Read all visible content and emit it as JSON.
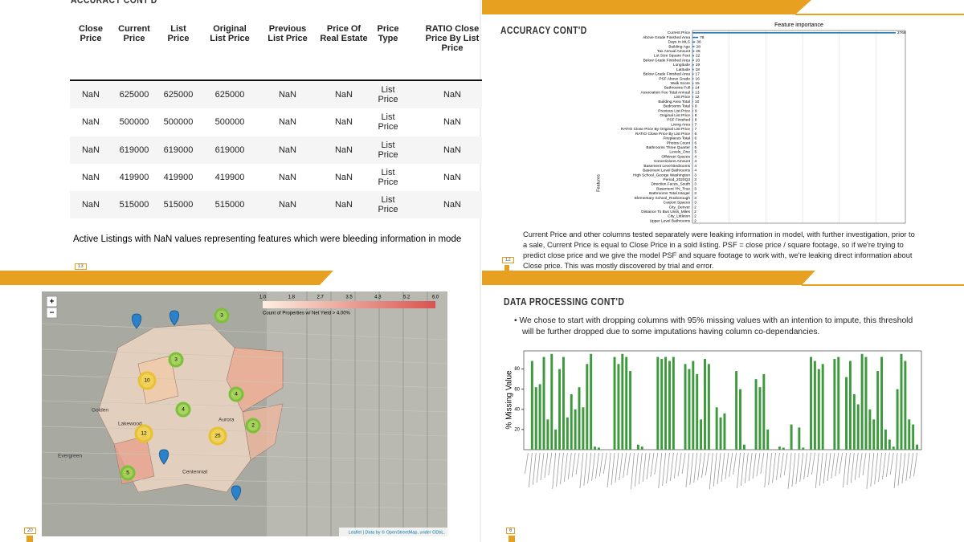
{
  "slides": [
    {
      "title": "ACCURACY CONT'D",
      "page": "13",
      "table": {
        "header": [
          "Close Price",
          "Current Price",
          "List Price",
          "Original List Price",
          "Previous List Price",
          "Price Of Real Estate",
          "Price Type",
          "RATIO Close Price By List Price"
        ],
        "rows": [
          [
            "NaN",
            625000,
            625000,
            625000,
            "NaN",
            "NaN",
            "List Price",
            "NaN"
          ],
          [
            "NaN",
            500000,
            500000,
            500000,
            "NaN",
            "NaN",
            "List Price",
            "NaN"
          ],
          [
            "NaN",
            619000,
            619000,
            619000,
            "NaN",
            "NaN",
            "List Price",
            "NaN"
          ],
          [
            "NaN",
            419900,
            419900,
            419900,
            "NaN",
            "NaN",
            "List Price",
            "NaN"
          ],
          [
            "NaN",
            515000,
            515000,
            515000,
            "NaN",
            "NaN",
            "List Price",
            "NaN"
          ]
        ]
      },
      "caption": "Active Listings with NaN values representing features which were bleeding information in mode"
    },
    {
      "title": "ACCURACY CONT'D",
      "page": "12",
      "text": "Current Price and other columns tested separately were leaking information in model, with further investigation, prior to a sale, Current Price is equal to Close Price in a sold listing. PSF = close price / square footage, so if we're trying to predict close price and we give the model PSF and square footage to work with, we're leaking direct information about Close price. This was mostly discovered by trial and error."
    },
    {
      "page": "20",
      "map": {
        "zoom": [
          "+",
          "−"
        ],
        "legend_ticks": [
          "1.0",
          "1.8",
          "2.7",
          "3.5",
          "4.3",
          "5.2",
          "6.0"
        ],
        "legend_title": "Count of Properties w/ Net Yield > 4.00%",
        "clusters": [
          "3",
          "3",
          "10",
          "4",
          "4",
          "2",
          "12",
          "25",
          "5"
        ],
        "places": [
          "Golden",
          "Lakewood",
          "Evergreen",
          "Centennial",
          "Aurora"
        ],
        "attribution": "Leaflet | Data by © OpenStreetMap, under ODbL."
      }
    },
    {
      "title": "DATA PROCESSING CONT'D",
      "page": "6",
      "bullet": "We chose to start with dropping columns with 95% missing values with an intention to impute, this threshold will be further dropped due to some imputations having column co-dependancies."
    }
  ],
  "chart_data": [
    {
      "type": "barh",
      "title": "Feature importance",
      "ylabel": "Features",
      "color": "#1f77b4",
      "grid": true,
      "categories": [
        "Current Price",
        "Above Grade Finished Area",
        "Days In MLS",
        "Building Age",
        "Tax Annual Amount",
        "Lot Size Square Feet",
        "Below Grade Finished Area",
        "Longitude",
        "Latitude",
        "Below Grade Finished Area",
        "PSF Above Grade",
        "Walk Score",
        "Bathrooms Full",
        "Association Fee Total Annual",
        "List Price",
        "Building Area Total",
        "Bedrooms Total",
        "Previous List Price",
        "Original List Price",
        "PSF Finished",
        "Living Area",
        "RATIO Close Price By Original List Price",
        "RATIO Close Price By List Price",
        "Fireplaces Total",
        "Photos Count",
        "Bathrooms Three Quarter",
        "Levels_One",
        "Offstreet Spaces",
        "Concessions Amount",
        "Basement Level Bedrooms",
        "Basement Level Bathrooms",
        "High School_George Washington",
        "Period_2020Q3",
        "Direction Faces_South",
        "Basement YN_True",
        "Bathrooms Total Integer",
        "Elementary School_Roxborough",
        "Carport Spaces",
        "City_Denver",
        "Distance To Bus Units_Miles",
        "City_Littleton",
        "Upper Level Bathrooms"
      ],
      "values": [
        2768,
        78,
        36,
        28,
        25,
        22,
        20,
        19,
        18,
        17,
        16,
        15,
        14,
        13,
        12,
        10,
        9,
        9,
        8,
        8,
        7,
        7,
        6,
        6,
        6,
        5,
        5,
        4,
        4,
        4,
        4,
        3,
        3,
        3,
        3,
        3,
        3,
        3,
        2,
        2,
        2,
        2
      ],
      "xlim": [
        0,
        2900
      ],
      "xticks": [
        0,
        500,
        1000,
        1500,
        2000,
        2500
      ]
    },
    {
      "type": "bar",
      "ylabel": "% Missing Value",
      "color": "#3c9a3c",
      "ylim": [
        0,
        98
      ],
      "yticks": [
        20,
        40,
        60,
        80
      ],
      "categories": [
        null,
        null,
        null,
        null,
        null,
        null,
        null,
        null,
        null,
        null,
        null,
        null,
        null,
        null,
        null,
        null,
        null,
        null,
        null,
        null,
        null,
        null,
        null,
        null,
        null,
        null,
        null,
        null,
        null,
        null,
        null,
        null,
        null,
        null,
        null,
        null,
        null,
        null,
        null,
        null,
        null,
        null,
        null,
        null,
        null,
        null,
        null,
        null,
        null,
        null,
        null,
        null,
        null,
        null,
        null,
        null,
        null,
        null,
        null,
        null,
        null,
        null,
        null,
        null,
        null,
        null,
        null,
        null,
        null,
        null,
        null,
        null,
        null,
        null,
        null,
        null,
        null,
        null,
        null,
        null,
        null,
        null,
        null,
        null,
        null,
        null,
        null,
        null,
        null,
        null,
        null,
        null,
        null,
        null,
        null,
        null,
        null,
        null,
        null,
        null
      ],
      "values": [
        0,
        88,
        62,
        65,
        92,
        30,
        95,
        20,
        80,
        92,
        32,
        55,
        40,
        62,
        42,
        85,
        95,
        3,
        2,
        0,
        0,
        0,
        92,
        85,
        95,
        92,
        78,
        0,
        5,
        3,
        0,
        0,
        0,
        92,
        90,
        92,
        88,
        92,
        0,
        0,
        85,
        80,
        88,
        75,
        30,
        90,
        85,
        0,
        42,
        32,
        36,
        0,
        0,
        78,
        60,
        5,
        0,
        0,
        70,
        62,
        75,
        20,
        0,
        0,
        3,
        2,
        0,
        25,
        0,
        22,
        2,
        0,
        92,
        88,
        80,
        85,
        0,
        0,
        90,
        92,
        0,
        72,
        88,
        55,
        45,
        95,
        92,
        40,
        30,
        78,
        92,
        20,
        10,
        3,
        60,
        95,
        88,
        30,
        25,
        5
      ]
    }
  ]
}
